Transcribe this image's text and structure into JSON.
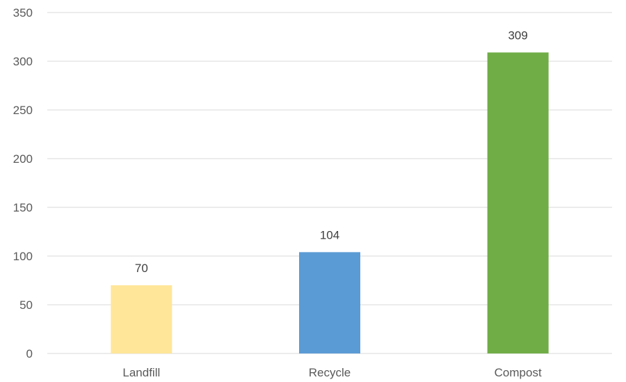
{
  "chart_data": {
    "type": "bar",
    "categories": [
      "Landfill",
      "Recycle",
      "Compost"
    ],
    "values": [
      70,
      104,
      309
    ],
    "colors": [
      "#FFE699",
      "#5B9BD5",
      "#70AD47"
    ],
    "ylim": [
      0,
      350
    ],
    "yticks": [
      0,
      50,
      100,
      150,
      200,
      250,
      300,
      350
    ],
    "grid": true,
    "gridline_color": "#D9D9D9",
    "data_labels": true
  }
}
